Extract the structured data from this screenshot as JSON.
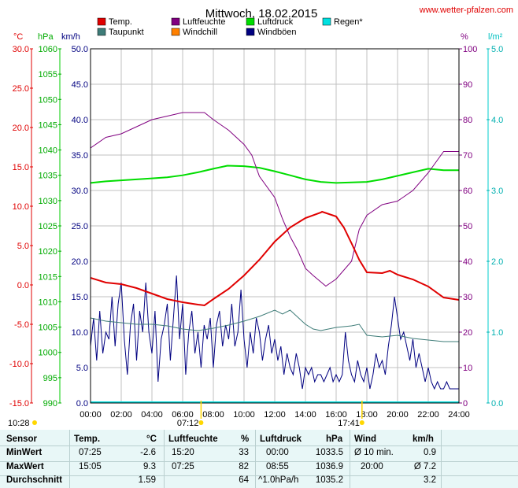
{
  "header": {
    "title": "Mittwoch, 18.02.2015",
    "source": "www.wetter-pfalzen.com"
  },
  "legend": [
    {
      "label": "Temp.",
      "color": "#e00000"
    },
    {
      "label": "Luftfeuchte",
      "color": "#800080"
    },
    {
      "label": "Luftdruck",
      "color": "#00dd00"
    },
    {
      "label": "Regen*",
      "color": "#00e0e0"
    },
    {
      "label": "Taupunkt",
      "color": "#3e7c78"
    },
    {
      "label": "Windchill",
      "color": "#ff8000"
    },
    {
      "label": "Windböen",
      "color": "#000080"
    }
  ],
  "units": {
    "temp": "°C",
    "pressure": "hPa",
    "wind": "km/h",
    "humidity": "%",
    "rain": "l/m²"
  },
  "colors": {
    "temp": "#e00000",
    "pressure": "#00dd00",
    "wind": "#000080",
    "humidity": "#800080",
    "rain": "#00e0e0",
    "dewpoint": "#3e7c78",
    "grid": "#c0c0c0"
  },
  "axis_labels": {
    "temp": [
      "30.0",
      "25.0",
      "20.0",
      "15.0",
      "10.0",
      "5.0",
      "0.0",
      "-5.0",
      "-10.0",
      "-15.0"
    ],
    "pressure": [
      "1060",
      "1055",
      "1050",
      "1045",
      "1040",
      "1035",
      "1030",
      "1025",
      "1020",
      "1015",
      "1010",
      "1005",
      "1000",
      "995",
      "990"
    ],
    "wind": [
      "50.0",
      "45.0",
      "40.0",
      "35.0",
      "30.0",
      "25.0",
      "20.0",
      "15.0",
      "10.0",
      "5.0",
      "0.0"
    ],
    "humidity": [
      "100",
      "90",
      "80",
      "70",
      "60",
      "50",
      "40",
      "30",
      "20",
      "10",
      "0"
    ],
    "rain": [
      "5.0",
      "4.0",
      "3.0",
      "2.0",
      "1.0",
      "0.0"
    ],
    "time": [
      "00:00",
      "02:00",
      "04:00",
      "06:00",
      "08:00",
      "10:00",
      "12:00",
      "14:00",
      "16:00",
      "18:00",
      "20:00",
      "22:00",
      "24:00"
    ]
  },
  "sun": {
    "moonrise": "10:28",
    "sunrise": "07:12",
    "sunset": "17:41"
  },
  "chart_data": {
    "type": "line",
    "title": "Mittwoch, 18.02.2015",
    "xlim": [
      0,
      24
    ],
    "axes": {
      "temp": [
        -15,
        30
      ],
      "pressure": [
        990,
        1060
      ],
      "wind": [
        0,
        50
      ],
      "humidity": [
        0,
        100
      ],
      "rain": [
        0,
        5
      ]
    },
    "series": [
      {
        "name": "Temp.",
        "axis": "temp",
        "unit": "°C",
        "points": [
          [
            0,
            0.9
          ],
          [
            1,
            0.3
          ],
          [
            2,
            0.1
          ],
          [
            3,
            -0.4
          ],
          [
            4,
            -1.1
          ],
          [
            5,
            -1.8
          ],
          [
            6,
            -2.2
          ],
          [
            7,
            -2.5
          ],
          [
            7.42,
            -2.6
          ],
          [
            8,
            -1.8
          ],
          [
            9,
            -0.5
          ],
          [
            10,
            1.2
          ],
          [
            11,
            3.2
          ],
          [
            12,
            5.5
          ],
          [
            13,
            7.3
          ],
          [
            14,
            8.5
          ],
          [
            15,
            9.2
          ],
          [
            15.08,
            9.3
          ],
          [
            16,
            8.7
          ],
          [
            16.5,
            7.3
          ],
          [
            17,
            5.3
          ],
          [
            17.5,
            3.2
          ],
          [
            18,
            1.6
          ],
          [
            19,
            1.5
          ],
          [
            19.5,
            1.8
          ],
          [
            20,
            1.3
          ],
          [
            21,
            0.7
          ],
          [
            22,
            -0.2
          ],
          [
            23,
            -1.6
          ],
          [
            24,
            -1.9
          ]
        ]
      },
      {
        "name": "Luftfeuchte",
        "axis": "humidity",
        "unit": "%",
        "points": [
          [
            0,
            72
          ],
          [
            1,
            75
          ],
          [
            2,
            76
          ],
          [
            3,
            78
          ],
          [
            4,
            80
          ],
          [
            5,
            81
          ],
          [
            6,
            82
          ],
          [
            7,
            82
          ],
          [
            7.42,
            82
          ],
          [
            8,
            80
          ],
          [
            9,
            77
          ],
          [
            10,
            73
          ],
          [
            10.5,
            70
          ],
          [
            11,
            64
          ],
          [
            12,
            58
          ],
          [
            12.5,
            52
          ],
          [
            13,
            47
          ],
          [
            13.5,
            43
          ],
          [
            14,
            38
          ],
          [
            14.5,
            36
          ],
          [
            15.33,
            33
          ],
          [
            16,
            35
          ],
          [
            17,
            40
          ],
          [
            17.5,
            49
          ],
          [
            18,
            53
          ],
          [
            19,
            56
          ],
          [
            20,
            57
          ],
          [
            21,
            60
          ],
          [
            22,
            65
          ],
          [
            23,
            71
          ],
          [
            24,
            71
          ]
        ]
      },
      {
        "name": "Luftdruck",
        "axis": "pressure",
        "unit": "hPa",
        "points": [
          [
            0,
            1033.5
          ],
          [
            1,
            1033.8
          ],
          [
            2,
            1034.0
          ],
          [
            3,
            1034.2
          ],
          [
            4,
            1034.4
          ],
          [
            5,
            1034.6
          ],
          [
            6,
            1035.0
          ],
          [
            7,
            1035.6
          ],
          [
            8,
            1036.3
          ],
          [
            8.92,
            1036.9
          ],
          [
            10,
            1036.8
          ],
          [
            11,
            1036.5
          ],
          [
            12,
            1035.8
          ],
          [
            13,
            1035.0
          ],
          [
            14,
            1034.2
          ],
          [
            15,
            1033.7
          ],
          [
            16,
            1033.5
          ],
          [
            17,
            1033.6
          ],
          [
            18,
            1033.7
          ],
          [
            19,
            1034.2
          ],
          [
            20,
            1034.9
          ],
          [
            21,
            1035.6
          ],
          [
            22,
            1036.3
          ],
          [
            23,
            1036.0
          ],
          [
            24,
            1036.0
          ]
        ]
      },
      {
        "name": "Taupunkt",
        "axis": "temp",
        "unit": "°C",
        "points": [
          [
            0,
            -4.2
          ],
          [
            1,
            -4.6
          ],
          [
            2,
            -4.8
          ],
          [
            3,
            -5.0
          ],
          [
            4,
            -5.0
          ],
          [
            5,
            -5.2
          ],
          [
            6,
            -5.6
          ],
          [
            7,
            -5.8
          ],
          [
            8,
            -5.5
          ],
          [
            9,
            -5.1
          ],
          [
            10,
            -4.6
          ],
          [
            11,
            -4.0
          ],
          [
            12,
            -3.2
          ],
          [
            12.5,
            -3.7
          ],
          [
            13,
            -3.2
          ],
          [
            14,
            -5.0
          ],
          [
            14.5,
            -5.6
          ],
          [
            15,
            -5.8
          ],
          [
            16,
            -5.4
          ],
          [
            17,
            -5.2
          ],
          [
            17.5,
            -5.0
          ],
          [
            18,
            -6.4
          ],
          [
            19,
            -6.6
          ],
          [
            20,
            -6.4
          ],
          [
            21,
            -6.8
          ],
          [
            22,
            -7.0
          ],
          [
            23,
            -7.2
          ],
          [
            24,
            -7.2
          ]
        ]
      },
      {
        "name": "Windböen",
        "axis": "wind",
        "unit": "km/h",
        "points": [
          [
            0,
            8
          ],
          [
            0.2,
            12
          ],
          [
            0.4,
            6
          ],
          [
            0.6,
            13
          ],
          [
            0.8,
            7
          ],
          [
            1,
            10
          ],
          [
            1.2,
            9
          ],
          [
            1.4,
            15
          ],
          [
            1.6,
            8
          ],
          [
            1.8,
            14
          ],
          [
            2,
            17
          ],
          [
            2.2,
            9
          ],
          [
            2.4,
            4
          ],
          [
            2.6,
            11
          ],
          [
            2.8,
            14
          ],
          [
            3,
            6
          ],
          [
            3.2,
            13
          ],
          [
            3.4,
            10
          ],
          [
            3.6,
            17
          ],
          [
            3.8,
            10
          ],
          [
            4,
            7
          ],
          [
            4.2,
            13
          ],
          [
            4.4,
            3
          ],
          [
            4.6,
            9
          ],
          [
            4.8,
            11
          ],
          [
            5,
            14
          ],
          [
            5.2,
            6
          ],
          [
            5.4,
            12
          ],
          [
            5.6,
            18
          ],
          [
            5.8,
            9
          ],
          [
            6,
            14
          ],
          [
            6.2,
            4
          ],
          [
            6.4,
            10
          ],
          [
            6.6,
            13
          ],
          [
            6.8,
            7
          ],
          [
            7,
            10
          ],
          [
            7.2,
            5
          ],
          [
            7.4,
            11
          ],
          [
            7.6,
            9
          ],
          [
            7.8,
            12
          ],
          [
            8,
            5
          ],
          [
            8.2,
            11
          ],
          [
            8.4,
            13
          ],
          [
            8.6,
            8
          ],
          [
            8.8,
            11
          ],
          [
            9,
            9
          ],
          [
            9.2,
            14
          ],
          [
            9.4,
            8
          ],
          [
            9.6,
            10
          ],
          [
            9.8,
            16
          ],
          [
            10,
            9
          ],
          [
            10.2,
            5
          ],
          [
            10.4,
            10
          ],
          [
            10.6,
            7
          ],
          [
            10.8,
            12
          ],
          [
            11,
            10
          ],
          [
            11.2,
            6
          ],
          [
            11.4,
            9
          ],
          [
            11.6,
            11
          ],
          [
            11.8,
            7
          ],
          [
            12,
            9
          ],
          [
            12.2,
            6
          ],
          [
            12.4,
            8
          ],
          [
            12.6,
            4
          ],
          [
            12.8,
            7
          ],
          [
            13,
            5
          ],
          [
            13.2,
            4
          ],
          [
            13.4,
            7
          ],
          [
            13.6,
            5
          ],
          [
            13.8,
            2
          ],
          [
            14,
            5
          ],
          [
            14.2,
            4
          ],
          [
            14.4,
            5
          ],
          [
            14.6,
            3
          ],
          [
            14.8,
            4
          ],
          [
            15,
            4
          ],
          [
            15.2,
            3
          ],
          [
            15.4,
            4
          ],
          [
            15.6,
            5
          ],
          [
            15.8,
            3
          ],
          [
            16,
            4
          ],
          [
            16.2,
            3
          ],
          [
            16.4,
            4
          ],
          [
            16.6,
            10
          ],
          [
            16.8,
            6
          ],
          [
            17,
            4
          ],
          [
            17.2,
            3
          ],
          [
            17.4,
            6
          ],
          [
            17.6,
            4
          ],
          [
            17.8,
            3
          ],
          [
            18,
            5
          ],
          [
            18.2,
            2
          ],
          [
            18.4,
            4
          ],
          [
            18.6,
            7
          ],
          [
            18.8,
            5
          ],
          [
            19,
            6
          ],
          [
            19.2,
            4
          ],
          [
            19.4,
            8
          ],
          [
            19.6,
            11
          ],
          [
            19.8,
            15
          ],
          [
            20,
            12
          ],
          [
            20.2,
            9
          ],
          [
            20.4,
            10
          ],
          [
            20.6,
            8
          ],
          [
            20.8,
            6
          ],
          [
            21,
            9
          ],
          [
            21.2,
            5
          ],
          [
            21.4,
            7
          ],
          [
            21.6,
            5
          ],
          [
            21.8,
            3
          ],
          [
            22,
            5
          ],
          [
            22.2,
            3
          ],
          [
            22.4,
            2
          ],
          [
            22.6,
            3
          ],
          [
            22.8,
            2
          ],
          [
            23,
            2
          ],
          [
            23.2,
            3
          ],
          [
            23.4,
            2
          ],
          [
            23.6,
            2
          ],
          [
            23.8,
            2
          ],
          [
            24,
            2
          ]
        ]
      }
    ]
  },
  "stats": {
    "sensor_label": "Sensor",
    "headers": {
      "temp": "Temp.",
      "temp_unit": "°C",
      "humidity": "Luftfeuchte",
      "humidity_unit": "%",
      "pressure": "Luftdruck",
      "pressure_unit": "hPa",
      "wind": "Wind",
      "wind_unit": "km/h"
    },
    "rows": [
      {
        "label": "MinWert",
        "temp_time": "07:25",
        "temp_val": "-2.6",
        "hum_time": "15:20",
        "hum_val": "33",
        "press_time": "00:00",
        "press_val": "1033.5",
        "wind_time": "Ø 10 min.",
        "wind_val": "0.9"
      },
      {
        "label": "MaxWert",
        "temp_time": "15:05",
        "temp_val": "9.3",
        "hum_time": "07:25",
        "hum_val": "82",
        "press_time": "08:55",
        "press_val": "1036.9",
        "wind_time": "20:00",
        "wind_val": "Ø 7.2"
      },
      {
        "label": "Durchschnitt",
        "temp_time": "",
        "temp_val": "1.59",
        "hum_time": "",
        "hum_val": "64",
        "press_time": "^1.0hPa/h",
        "press_val": "1035.2",
        "wind_time": "",
        "wind_val": "3.2"
      }
    ]
  }
}
